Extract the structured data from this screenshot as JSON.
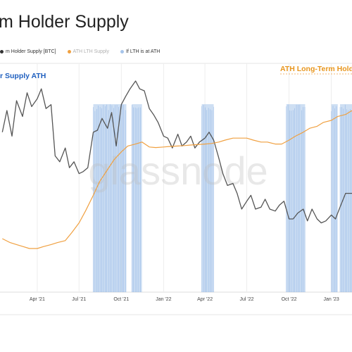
{
  "page": {
    "title": "m Holder Supply",
    "watermark": "glassnode"
  },
  "legend": {
    "items": [
      {
        "label": "m Holder Supply [BTC]",
        "color": "#333333"
      },
      {
        "label": "ATH LTH Supply",
        "color": "#f0a040"
      },
      {
        "label": "If LTH is at ATH",
        "color": "#a6c4ea"
      }
    ]
  },
  "colors": {
    "lth_supply": "#555555",
    "ath_lth_supply": "#f0a040",
    "ath_bands": "#a6c4ea",
    "ath_label_blue": "#1f5fbf",
    "ath_label_orange": "#e8961e",
    "grid": "#ededed"
  },
  "chart_data": {
    "type": "line",
    "annotations": [
      {
        "text": "r Supply ATH",
        "color": "#1f5fbf"
      },
      {
        "text": "ATH Long-Term Hold",
        "color": "#e8961e"
      }
    ],
    "x_ticks": [
      "Apr '21",
      "Jul '21",
      "Oct '21",
      "Jan '22",
      "Apr '22",
      "Jul '22",
      "Oct '22",
      "Jan '23"
    ],
    "y_relative_range": [
      0,
      1
    ],
    "grid": true,
    "series": [
      {
        "name": "m Holder Supply [BTC]",
        "color": "#555555",
        "x": [
          "2021-01-15",
          "2021-01-25",
          "2021-02-05",
          "2021-02-15",
          "2021-02-28",
          "2021-03-10",
          "2021-03-20",
          "2021-04-01",
          "2021-04-10",
          "2021-04-20",
          "2021-05-01",
          "2021-05-10",
          "2021-05-20",
          "2021-06-01",
          "2021-06-10",
          "2021-06-20",
          "2021-07-01",
          "2021-07-10",
          "2021-07-20",
          "2021-08-01",
          "2021-08-10",
          "2021-08-20",
          "2021-09-01",
          "2021-09-10",
          "2021-09-20",
          "2021-10-01",
          "2021-10-10",
          "2021-10-20",
          "2021-11-01",
          "2021-11-10",
          "2021-11-20",
          "2021-12-01",
          "2021-12-10",
          "2021-12-20",
          "2022-01-01",
          "2022-01-10",
          "2022-01-20",
          "2022-02-01",
          "2022-02-10",
          "2022-02-20",
          "2022-03-01",
          "2022-03-10",
          "2022-03-20",
          "2022-04-01",
          "2022-04-10",
          "2022-04-20",
          "2022-05-01",
          "2022-05-10",
          "2022-05-20",
          "2022-06-01",
          "2022-06-10",
          "2022-06-20",
          "2022-07-01",
          "2022-07-10",
          "2022-07-20",
          "2022-08-01",
          "2022-08-10",
          "2022-08-20",
          "2022-09-01",
          "2022-09-10",
          "2022-09-20",
          "2022-10-01",
          "2022-10-10",
          "2022-10-20",
          "2022-11-01",
          "2022-11-10",
          "2022-11-20",
          "2022-12-01",
          "2022-12-10",
          "2022-12-20",
          "2023-01-01",
          "2023-01-10",
          "2023-01-20",
          "2023-02-01",
          "2023-02-15"
        ],
        "y": [
          0.74,
          0.85,
          0.72,
          0.9,
          0.82,
          0.94,
          0.87,
          0.91,
          0.96,
          0.86,
          0.88,
          0.62,
          0.59,
          0.66,
          0.56,
          0.59,
          0.53,
          0.54,
          0.56,
          0.74,
          0.75,
          0.81,
          0.76,
          0.84,
          0.67,
          0.88,
          0.92,
          0.96,
          1.0,
          0.96,
          0.95,
          0.86,
          0.83,
          0.79,
          0.72,
          0.71,
          0.66,
          0.73,
          0.67,
          0.69,
          0.72,
          0.66,
          0.69,
          0.71,
          0.74,
          0.7,
          0.61,
          0.53,
          0.47,
          0.48,
          0.43,
          0.35,
          0.39,
          0.42,
          0.35,
          0.36,
          0.4,
          0.35,
          0.34,
          0.37,
          0.39,
          0.3,
          0.3,
          0.33,
          0.35,
          0.29,
          0.35,
          0.3,
          0.28,
          0.29,
          0.32,
          0.3,
          0.36,
          0.43,
          0.43
        ]
      },
      {
        "name": "ATH LTH Supply",
        "color": "#f0a040",
        "x": [
          "2021-01-15",
          "2021-02-01",
          "2021-02-15",
          "2021-03-01",
          "2021-03-15",
          "2021-04-01",
          "2021-04-15",
          "2021-05-01",
          "2021-05-15",
          "2021-06-01",
          "2021-06-15",
          "2021-07-01",
          "2021-07-15",
          "2021-08-01",
          "2021-08-15",
          "2021-09-01",
          "2021-09-15",
          "2021-10-01",
          "2021-10-15",
          "2021-11-01",
          "2021-11-15",
          "2021-12-01",
          "2021-12-15",
          "2022-01-01",
          "2022-01-15",
          "2022-02-01",
          "2022-02-15",
          "2022-03-01",
          "2022-03-15",
          "2022-04-01",
          "2022-04-15",
          "2022-05-01",
          "2022-05-15",
          "2022-06-01",
          "2022-06-15",
          "2022-07-01",
          "2022-07-15",
          "2022-08-01",
          "2022-08-15",
          "2022-09-01",
          "2022-09-15",
          "2022-10-01",
          "2022-10-15",
          "2022-11-01",
          "2022-11-15",
          "2022-12-01",
          "2022-12-15",
          "2023-01-01",
          "2023-01-15",
          "2023-02-01",
          "2023-02-15"
        ],
        "y": [
          0.2,
          0.18,
          0.17,
          0.16,
          0.15,
          0.15,
          0.16,
          0.17,
          0.18,
          0.19,
          0.23,
          0.28,
          0.34,
          0.42,
          0.49,
          0.55,
          0.6,
          0.64,
          0.67,
          0.68,
          0.69,
          0.665,
          0.662,
          0.665,
          0.668,
          0.67,
          0.672,
          0.675,
          0.677,
          0.68,
          0.683,
          0.69,
          0.7,
          0.71,
          0.71,
          0.71,
          0.7,
          0.69,
          0.69,
          0.68,
          0.68,
          0.7,
          0.72,
          0.74,
          0.76,
          0.77,
          0.79,
          0.8,
          0.82,
          0.83,
          0.85
        ]
      },
      {
        "name": "If LTH is at ATH",
        "type": "bar",
        "color": "#a6c4ea",
        "ranges": [
          [
            "2021-08-01",
            "2021-10-12"
          ],
          [
            "2021-10-24",
            "2021-11-15"
          ],
          [
            "2022-03-25",
            "2022-04-20"
          ],
          [
            "2022-09-25",
            "2022-11-05"
          ],
          [
            "2023-01-01",
            "2023-01-15"
          ],
          [
            "2023-01-20",
            "2023-02-15"
          ]
        ]
      }
    ]
  }
}
